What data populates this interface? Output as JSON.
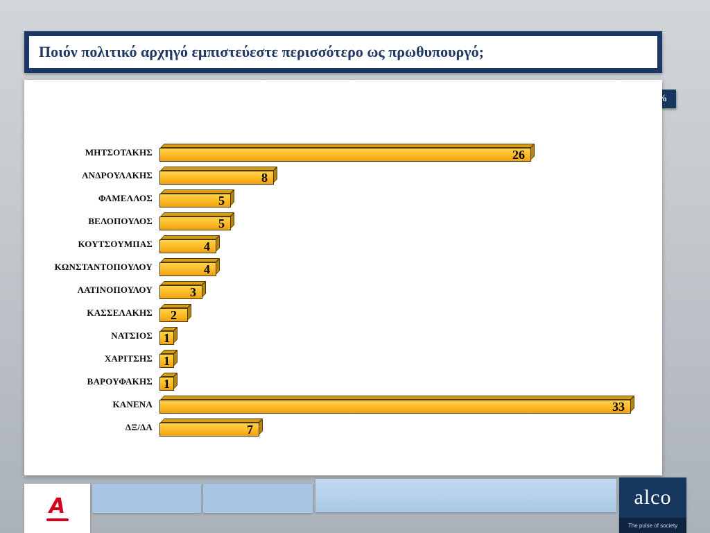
{
  "slide": {
    "title": "Ποιόν πολιτικό αρχηγό εμπιστεύεστε περισσότερο ως πρωθυπουργό;",
    "unit_badge": "%"
  },
  "chart_data": {
    "type": "bar",
    "orientation": "horizontal",
    "title": "Ποιόν πολιτικό αρχηγό εμπιστεύεστε περισσότερο ως πρωθυπουργό;",
    "unit": "%",
    "categories": [
      "ΜΗΤΣΟΤΑΚΗΣ",
      "ΑΝΔΡΟΥΛΑΚΗΣ",
      "ΦΑΜΕΛΛΟΣ",
      "ΒΕΛΟΠΟΥΛΟΣ",
      "ΚΟΥΤΣΟΥΜΠΑΣ",
      "ΚΩΝΣΤΑΝΤΟΠΟΥΛΟΥ",
      "ΛΑΤΙΝΟΠΟΥΛΟΥ",
      "ΚΑΣΣΕΛΑΚΗΣ",
      "ΝΑΤΣΙΟΣ",
      "ΧΑΡΙΤΣΗΣ",
      "ΒΑΡΟΥΦΑΚΗΣ",
      "ΚΑΝΕΝΑ",
      "ΔΞ/ΔΑ"
    ],
    "values": [
      26,
      8,
      5,
      5,
      4,
      4,
      3,
      2,
      1,
      1,
      1,
      33,
      7
    ],
    "xlim": [
      0,
      35
    ],
    "grid": false,
    "legend": false,
    "bar_color": "#FBBA25"
  },
  "footer": {
    "alpha_logo_letter": "A",
    "alco_logo_text": "alco",
    "alco_tagline": "The pulse of society"
  },
  "colors": {
    "navy": "#17375E",
    "bar_gold": "#FBBA25",
    "bar_side": "#B8840F",
    "footer_blue": "#A6C6E4"
  }
}
